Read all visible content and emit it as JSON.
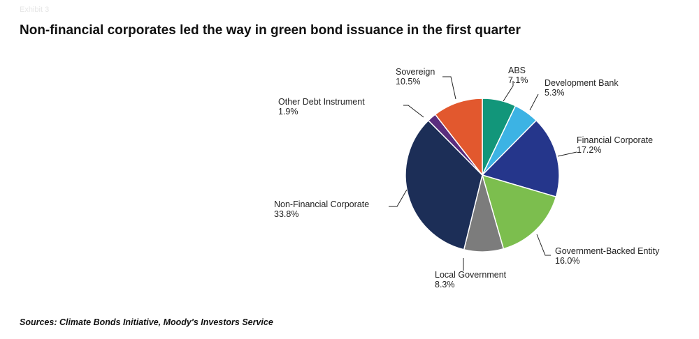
{
  "exhibit_label": "Exhibit 3",
  "title": "Non-financial corporates led the way in green bond issuance in the first quarter",
  "source": "Sources: Climate Bonds Initiative, Moody's Investors Service",
  "chart_data": {
    "type": "pie",
    "title": "Non-financial corporates led the way in green bond issuance in the first quarter",
    "start_angle_deg": 0,
    "direction": "clockwise",
    "slices": [
      {
        "label": "ABS",
        "value": 7.1,
        "value_label": "7.1%",
        "color": "#12967a"
      },
      {
        "label": "Development Bank",
        "value": 5.3,
        "value_label": "5.3%",
        "color": "#3cb3e4"
      },
      {
        "label": "Financial Corporate",
        "value": 17.2,
        "value_label": "17.2%",
        "color": "#25368b"
      },
      {
        "label": "Government-Backed Entity",
        "value": 16.0,
        "value_label": "16.0%",
        "color": "#7cbe4e"
      },
      {
        "label": "Local Government",
        "value": 8.3,
        "value_label": "8.3%",
        "color": "#7c7c7c"
      },
      {
        "label": "Non-Financial Corporate",
        "value": 33.8,
        "value_label": "33.8%",
        "color": "#1c2e57"
      },
      {
        "label": "Other Debt Instrument",
        "value": 1.9,
        "value_label": "1.9%",
        "color": "#5a2d7e"
      },
      {
        "label": "Sovereign",
        "value": 10.5,
        "value_label": "10.5%",
        "color": "#e2582e"
      }
    ]
  }
}
